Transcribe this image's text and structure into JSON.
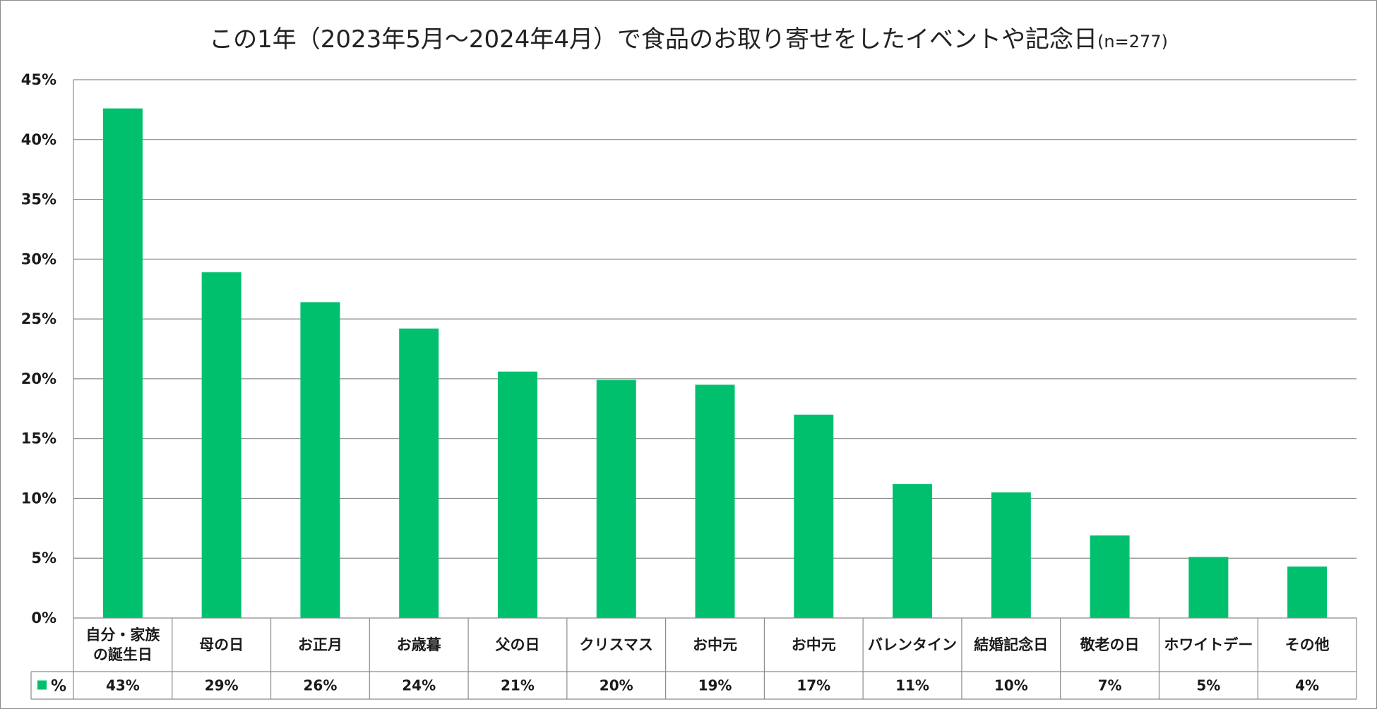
{
  "title": {
    "main": "この1年（2023年5月～2024年4月）で食品のお取り寄せをしたイベントや記念日",
    "sample": "(n=277)"
  },
  "colors": {
    "bar": "#00c06e",
    "grid": "#8c8c8c",
    "table_border": "#8c8c8c"
  },
  "chart_data": {
    "type": "bar",
    "title": "この1年（2023年5月～2024年4月）で食品のお取り寄せをしたイベントや記念日 (n=277)",
    "xlabel": "",
    "ylabel": "",
    "ylim": [
      0,
      45
    ],
    "yticks": [
      "0%",
      "5%",
      "10%",
      "15%",
      "20%",
      "25%",
      "30%",
      "35%",
      "40%",
      "45%"
    ],
    "grid": true,
    "legend": "data-table",
    "categories": [
      [
        "自分・家族",
        "の誕生日"
      ],
      [
        "母の日"
      ],
      [
        "お正月"
      ],
      [
        "お歳暮"
      ],
      [
        "父の日"
      ],
      [
        "クリスマス"
      ],
      [
        "お中元"
      ],
      [
        "お中元"
      ],
      [
        "バレンタイン"
      ],
      [
        "結婚記念日"
      ],
      [
        "敬老の日"
      ],
      [
        "ホワイトデー"
      ],
      [
        "その他"
      ]
    ],
    "series": [
      {
        "name": "%",
        "values": [
          42.6,
          28.9,
          26.4,
          24.2,
          20.6,
          19.9,
          19.5,
          17.0,
          11.2,
          10.5,
          6.9,
          5.1,
          4.3
        ],
        "labels": [
          "43%",
          "29%",
          "26%",
          "24%",
          "21%",
          "20%",
          "19%",
          "17%",
          "11%",
          "10%",
          "7%",
          "5%",
          "4%"
        ]
      }
    ]
  }
}
